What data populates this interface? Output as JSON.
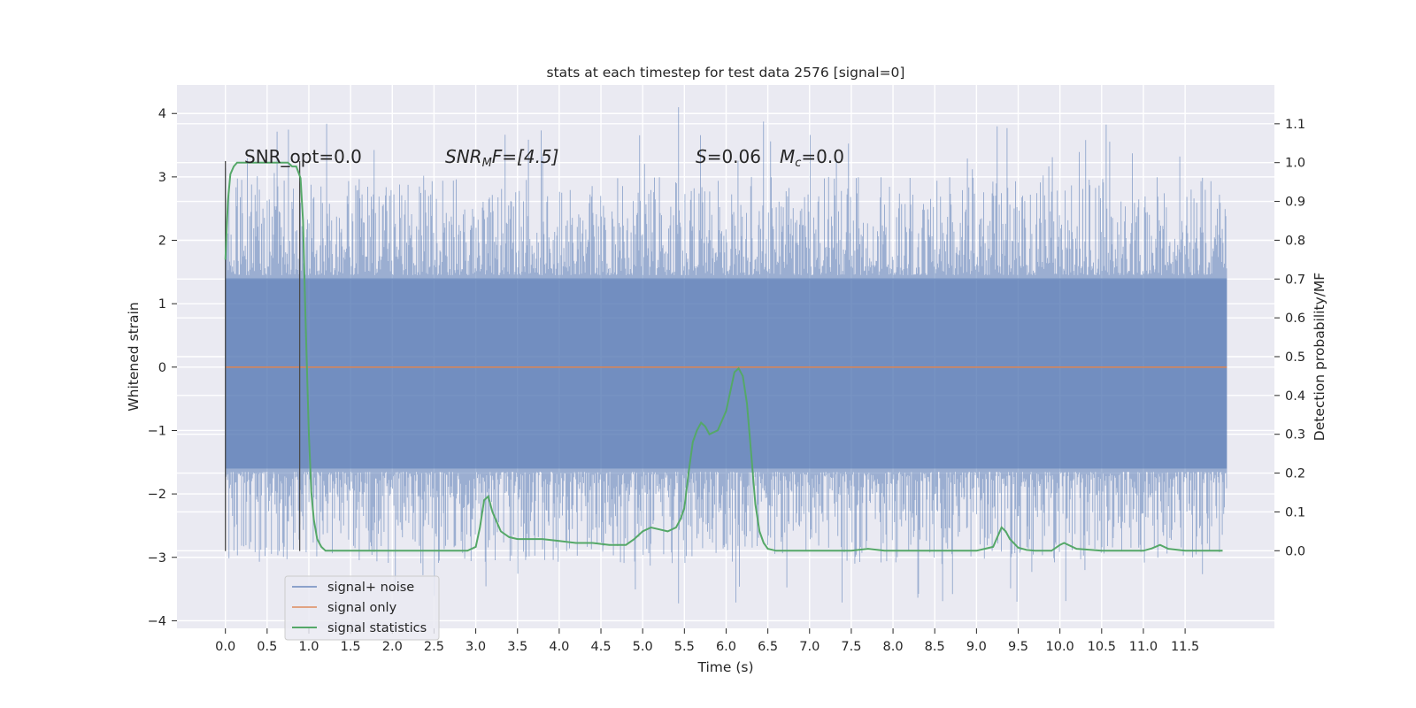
{
  "chart_data": {
    "type": "line",
    "title": "stats at each timestep for test data 2576 [signal=0]",
    "xlabel": "Time (s)",
    "ylabel_left": "Whitened strain",
    "ylabel_right": "Detection probability/MF",
    "xlim": [
      -0.58,
      12.57
    ],
    "ylim_left": [
      -4.12,
      4.45
    ],
    "ylim_right": [
      -0.2,
      1.2
    ],
    "x_ticks": [
      "0.0",
      "0.5",
      "1.0",
      "1.5",
      "2.0",
      "2.5",
      "3.0",
      "3.5",
      "4.0",
      "4.5",
      "5.0",
      "5.5",
      "6.0",
      "6.5",
      "7.0",
      "7.5",
      "8.0",
      "8.5",
      "9.0",
      "9.5",
      "10.0",
      "10.5",
      "11.0",
      "11.5"
    ],
    "y_ticks_left": [
      "4",
      "3",
      "2",
      "1",
      "0",
      "−1",
      "−2",
      "−3",
      "−4"
    ],
    "y_ticks_right": [
      "1.1",
      "1.0",
      "0.9",
      "0.8",
      "0.7",
      "0.6",
      "0.5",
      "0.4",
      "0.3",
      "0.2",
      "0.1",
      "0.0"
    ],
    "grid": true,
    "legend_position": "lower-left",
    "annotations": {
      "snr_opt": "SNR_opt=0.0",
      "snr_mf_var": "SNR",
      "snr_mf_sub": "M",
      "snr_mf_rest": "F=[4.5]",
      "s_var": "S",
      "s_rest": "=0.06",
      "mc_var": "M",
      "mc_sub": "c",
      "mc_rest": "=0.0"
    },
    "series": [
      {
        "name": "signal+ noise",
        "color": "#4c72b0",
        "kind": "noise",
        "x_range": [
          0.0,
          12.0
        ],
        "envelope_typical": [
          -1.6,
          1.4
        ],
        "peak_max": 4.1,
        "trough_min": -3.75
      },
      {
        "name": "signal only",
        "color": "#dd8452",
        "x": [
          0.0,
          12.0
        ],
        "y": [
          0.0,
          0.0
        ]
      },
      {
        "name": "signal statistics",
        "color": "#55a868",
        "axis": "right",
        "x": [
          0.0,
          0.03,
          0.06,
          0.1,
          0.14,
          0.2,
          0.25,
          0.3,
          0.4,
          0.5,
          0.6,
          0.7,
          0.75,
          0.8,
          0.85,
          0.9,
          0.93,
          0.96,
          1.0,
          1.03,
          1.06,
          1.1,
          1.15,
          1.2,
          1.3,
          1.5,
          2.0,
          2.5,
          2.9,
          3.0,
          3.05,
          3.1,
          3.15,
          3.2,
          3.3,
          3.4,
          3.5,
          3.6,
          3.8,
          4.0,
          4.2,
          4.4,
          4.6,
          4.8,
          4.9,
          5.0,
          5.1,
          5.2,
          5.3,
          5.4,
          5.45,
          5.5,
          5.55,
          5.6,
          5.65,
          5.7,
          5.75,
          5.8,
          5.9,
          6.0,
          6.05,
          6.1,
          6.15,
          6.2,
          6.25,
          6.3,
          6.35,
          6.4,
          6.45,
          6.5,
          6.6,
          6.8,
          7.0,
          7.5,
          7.7,
          7.9,
          8.5,
          9.0,
          9.1,
          9.2,
          9.3,
          9.35,
          9.4,
          9.5,
          9.6,
          9.7,
          9.9,
          10.0,
          10.05,
          10.2,
          10.5,
          11.0,
          11.1,
          11.2,
          11.3,
          11.5,
          11.95
        ],
        "y": [
          0.75,
          0.9,
          0.97,
          0.99,
          1.0,
          1.0,
          1.0,
          1.0,
          1.0,
          1.0,
          1.0,
          1.0,
          1.0,
          0.99,
          0.99,
          0.96,
          0.85,
          0.6,
          0.3,
          0.15,
          0.08,
          0.03,
          0.01,
          0.0,
          0.0,
          0.0,
          0.0,
          0.0,
          0.0,
          0.01,
          0.06,
          0.13,
          0.14,
          0.1,
          0.05,
          0.035,
          0.03,
          0.03,
          0.03,
          0.025,
          0.02,
          0.02,
          0.015,
          0.015,
          0.03,
          0.05,
          0.06,
          0.055,
          0.05,
          0.06,
          0.08,
          0.11,
          0.2,
          0.28,
          0.31,
          0.33,
          0.32,
          0.3,
          0.31,
          0.36,
          0.41,
          0.46,
          0.47,
          0.45,
          0.38,
          0.25,
          0.12,
          0.05,
          0.02,
          0.005,
          0.0,
          0.0,
          0.0,
          0.0,
          0.005,
          0.0,
          0.0,
          0.0,
          0.005,
          0.01,
          0.06,
          0.05,
          0.03,
          0.008,
          0.002,
          0.0,
          0.0,
          0.015,
          0.02,
          0.005,
          0.0,
          0.0,
          0.006,
          0.015,
          0.005,
          0.0,
          0.0
        ]
      }
    ],
    "window_markers": {
      "x_start": 0.0,
      "x_end": 0.89,
      "y_top": 3.25,
      "y_bottom": -2.9
    }
  }
}
